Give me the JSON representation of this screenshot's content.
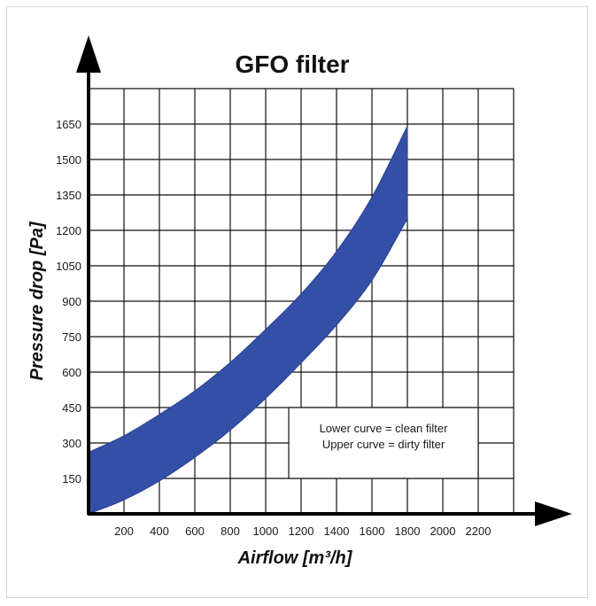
{
  "chart_data": {
    "type": "area",
    "title": "GFO filter",
    "xlabel": "Airflow [m³/h]",
    "ylabel": "Pressure drop [Pa]",
    "x_ticks": [
      200,
      400,
      600,
      800,
      1000,
      1200,
      1400,
      1600,
      1800,
      2000,
      2200
    ],
    "y_ticks": [
      150,
      300,
      450,
      600,
      750,
      900,
      1050,
      1200,
      1350,
      1500,
      1650
    ],
    "xlim": [
      0,
      2400
    ],
    "ylim": [
      0,
      1800
    ],
    "grid": true,
    "series": [
      {
        "name": "Lower curve = clean filter",
        "x": [
          0,
          200,
          400,
          600,
          800,
          1000,
          1200,
          1400,
          1600,
          1800
        ],
        "y": [
          0,
          60,
          140,
          240,
          355,
          490,
          640,
          800,
          990,
          1250
        ]
      },
      {
        "name": "Upper curve = dirty filter",
        "x": [
          0,
          200,
          400,
          600,
          800,
          1000,
          1200,
          1400,
          1600,
          1800
        ],
        "y": [
          260,
          330,
          420,
          520,
          640,
          780,
          930,
          1110,
          1340,
          1640
        ]
      }
    ],
    "band_color": "#3450a6",
    "annotation": {
      "lines": [
        "Lower curve = clean filter",
        "Upper curve = dirty filter"
      ]
    }
  }
}
